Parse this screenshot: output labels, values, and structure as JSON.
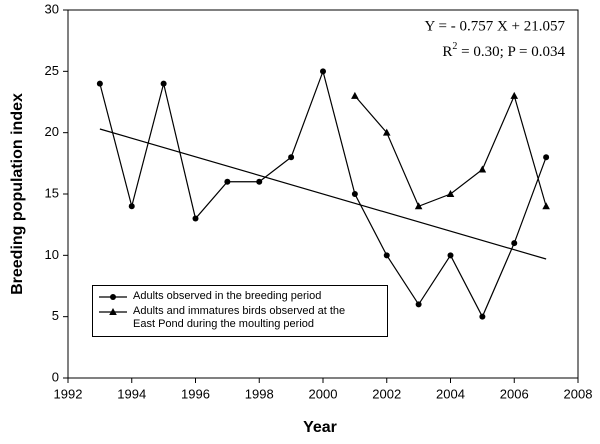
{
  "chart_data": {
    "type": "line",
    "xlabel": "Year",
    "ylabel": "Breeding population index",
    "xlim": [
      1992,
      2008
    ],
    "xticks": [
      1992,
      1994,
      1996,
      1998,
      2000,
      2002,
      2004,
      2006,
      2008
    ],
    "ylim": [
      0,
      30
    ],
    "yticks": [
      0,
      5,
      10,
      15,
      20,
      25,
      30
    ],
    "series": [
      {
        "name": "Adults observed in the breeding period",
        "color": "#000000",
        "marker": "circle",
        "x": [
          1993,
          1994,
          1995,
          1996,
          1997,
          1998,
          1999,
          2000,
          2001,
          2002,
          2003,
          2004,
          2005,
          2006,
          2007
        ],
        "values": [
          24,
          14,
          24,
          13,
          16,
          16,
          18,
          25,
          15,
          10,
          6,
          10,
          5,
          11,
          18
        ]
      },
      {
        "name": "Adults and immatures birds observed at the East Pond during the moulting period",
        "color": "#000000",
        "marker": "triangle",
        "x": [
          2001,
          2002,
          2003,
          2004,
          2005,
          2006,
          2007
        ],
        "values": [
          23,
          20,
          14,
          15,
          17,
          23,
          14
        ]
      }
    ],
    "trend": {
      "x": [
        1993,
        2007
      ],
      "values": [
        20.3,
        9.7
      ],
      "color": "#000000"
    },
    "annotations": [
      "Y = - 0.757 X + 21.057",
      [
        "R",
        "2",
        " = 0.30; P = 0.034"
      ]
    ],
    "legend": "lower left"
  }
}
